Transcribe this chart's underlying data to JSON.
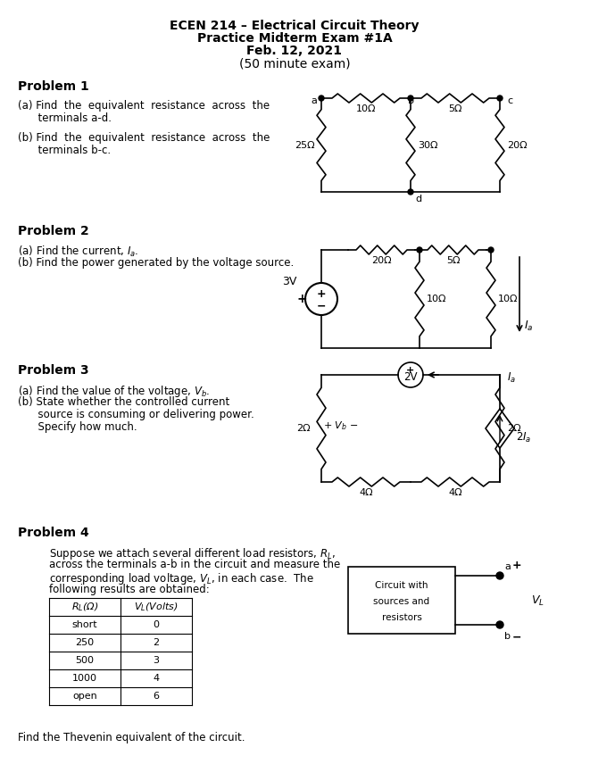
{
  "title_line1": "ECEN 214 – Electrical Circuit Theory",
  "title_line2": "Practice Midterm Exam #1A",
  "title_line3": "Feb. 12, 2021",
  "title_line4": "(50 minute exam)",
  "bg_color": "#ffffff",
  "text_color": "#000000",
  "p1_title": "Problem 1",
  "p1_a": "(a) Find  the  equivalent  resistance  across  the",
  "p1_a2": "      terminals a-d.",
  "p1_b": "(b) Find  the  equivalent  resistance  across  the",
  "p1_b2": "      terminals b-c.",
  "p2_title": "Problem 2",
  "p2_a": "(a) Find the current, $I_a$.",
  "p2_b": "(b) Find the power generated by the voltage source.",
  "p3_title": "Problem 3",
  "p3_a": "(a) Find the value of the voltage, $V_b$.",
  "p3_b": "(b) State whether the controlled current",
  "p3_b2": "      source is consuming or delivering power.",
  "p3_b3": "      Specify how much.",
  "p4_title": "Problem 4",
  "p4_text1": "Suppose we attach several different load resistors, $R_L$,",
  "p4_text2": "across the terminals a-b in the circuit and measure the",
  "p4_text3": "corresponding load voltage, $V_L$, in each case.  The",
  "p4_text4": "following results are obtained:",
  "p4_final": "Find the Thevenin equivalent of the circuit.",
  "table_headers": [
    "$R_L$(Ω)",
    "$V_L$(Volts)"
  ],
  "table_rows": [
    [
      "short",
      "0"
    ],
    [
      "250",
      "2"
    ],
    [
      "500",
      "3"
    ],
    [
      "1000",
      "4"
    ],
    [
      "open",
      "6"
    ]
  ]
}
